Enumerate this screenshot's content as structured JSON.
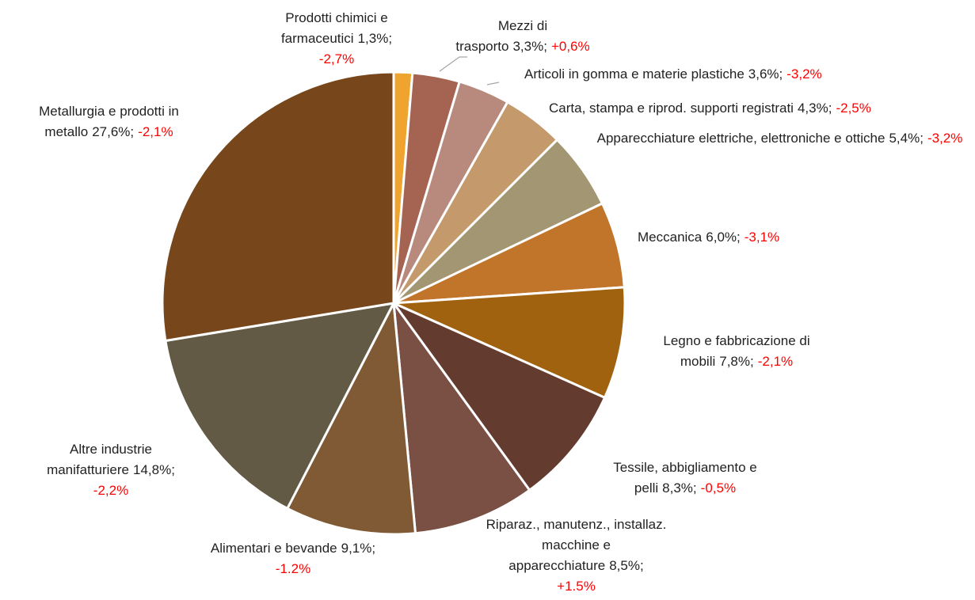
{
  "chart_data": {
    "type": "pie",
    "categories": [
      "Prodotti chimici e farmaceutici",
      "Mezzi di trasporto",
      "Articoli in gomma e materie plastiche",
      "Carta, stampa e riprod. supporti registrati",
      "Apparecchiature elettriche, elettroniche e ottiche",
      "Meccanica",
      "Legno e fabbricazione di mobili",
      "Tessile, abbigliamento e pelli",
      "Riparaz., manutenz., installaz. macchine e apparecchiature",
      "Alimentari e bevande",
      "Altre industrie manifatturiere",
      "Metallurgia e prodotti in metallo"
    ],
    "values": [
      1.3,
      3.3,
      3.6,
      4.3,
      5.4,
      6.0,
      7.8,
      8.3,
      8.5,
      9.1,
      14.8,
      27.6
    ],
    "value_labels": [
      "1,3%",
      "3,3%",
      "3,6%",
      "4,3%",
      "5,4%",
      "6,0%",
      "7,8%",
      "8,3%",
      "8,5%",
      "9,1%",
      "14,8%",
      "27,6%"
    ],
    "changes": [
      -2.7,
      0.6,
      -3.2,
      -2.5,
      -3.2,
      -3.1,
      -2.1,
      -0.5,
      1.5,
      -1.2,
      -2.2,
      -2.1
    ],
    "change_labels": [
      "-2,7%",
      "+0,6%",
      "-3,2%",
      "-2,5%",
      "-3,2%",
      "-3,1%",
      "-2,1%",
      "-0,5%",
      "+1.5%",
      "-1.2%",
      "-2,2%",
      "-2,1%"
    ],
    "colors": [
      "#f0a430",
      "#a56452",
      "#b88a7e",
      "#c49a6c",
      "#a39672",
      "#c0752b",
      "#a0620f",
      "#643b2f",
      "#7a5045",
      "#7f5a35",
      "#625a45",
      "#77461a"
    ],
    "change_color": "#ff0000"
  }
}
